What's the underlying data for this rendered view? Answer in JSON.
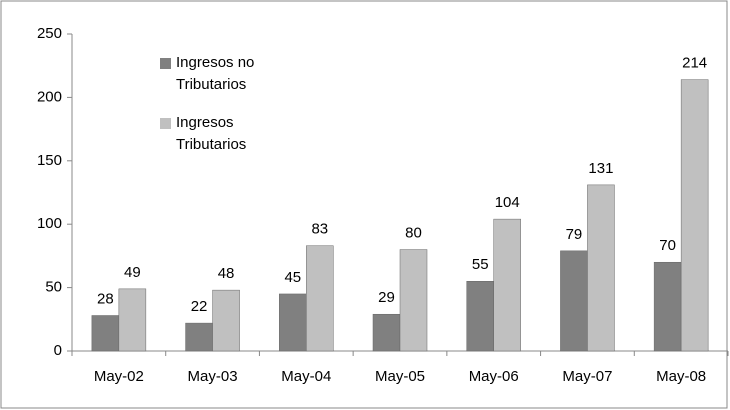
{
  "chart_data": {
    "type": "bar",
    "categories": [
      "May-02",
      "May-03",
      "May-04",
      "May-05",
      "May-06",
      "May-07",
      "May-08"
    ],
    "series": [
      {
        "name": "Ingresos no Tributarios",
        "color": "#808080",
        "values": [
          28,
          22,
          45,
          29,
          55,
          79,
          70
        ]
      },
      {
        "name": "Ingresos Tributarios",
        "color": "#c0c0c0",
        "values": [
          49,
          48,
          83,
          80,
          104,
          131,
          214
        ]
      }
    ],
    "ylim": [
      0,
      250
    ],
    "yticks": [
      0,
      50,
      100,
      150,
      200,
      250
    ],
    "grid": false,
    "legend": "upper left"
  }
}
